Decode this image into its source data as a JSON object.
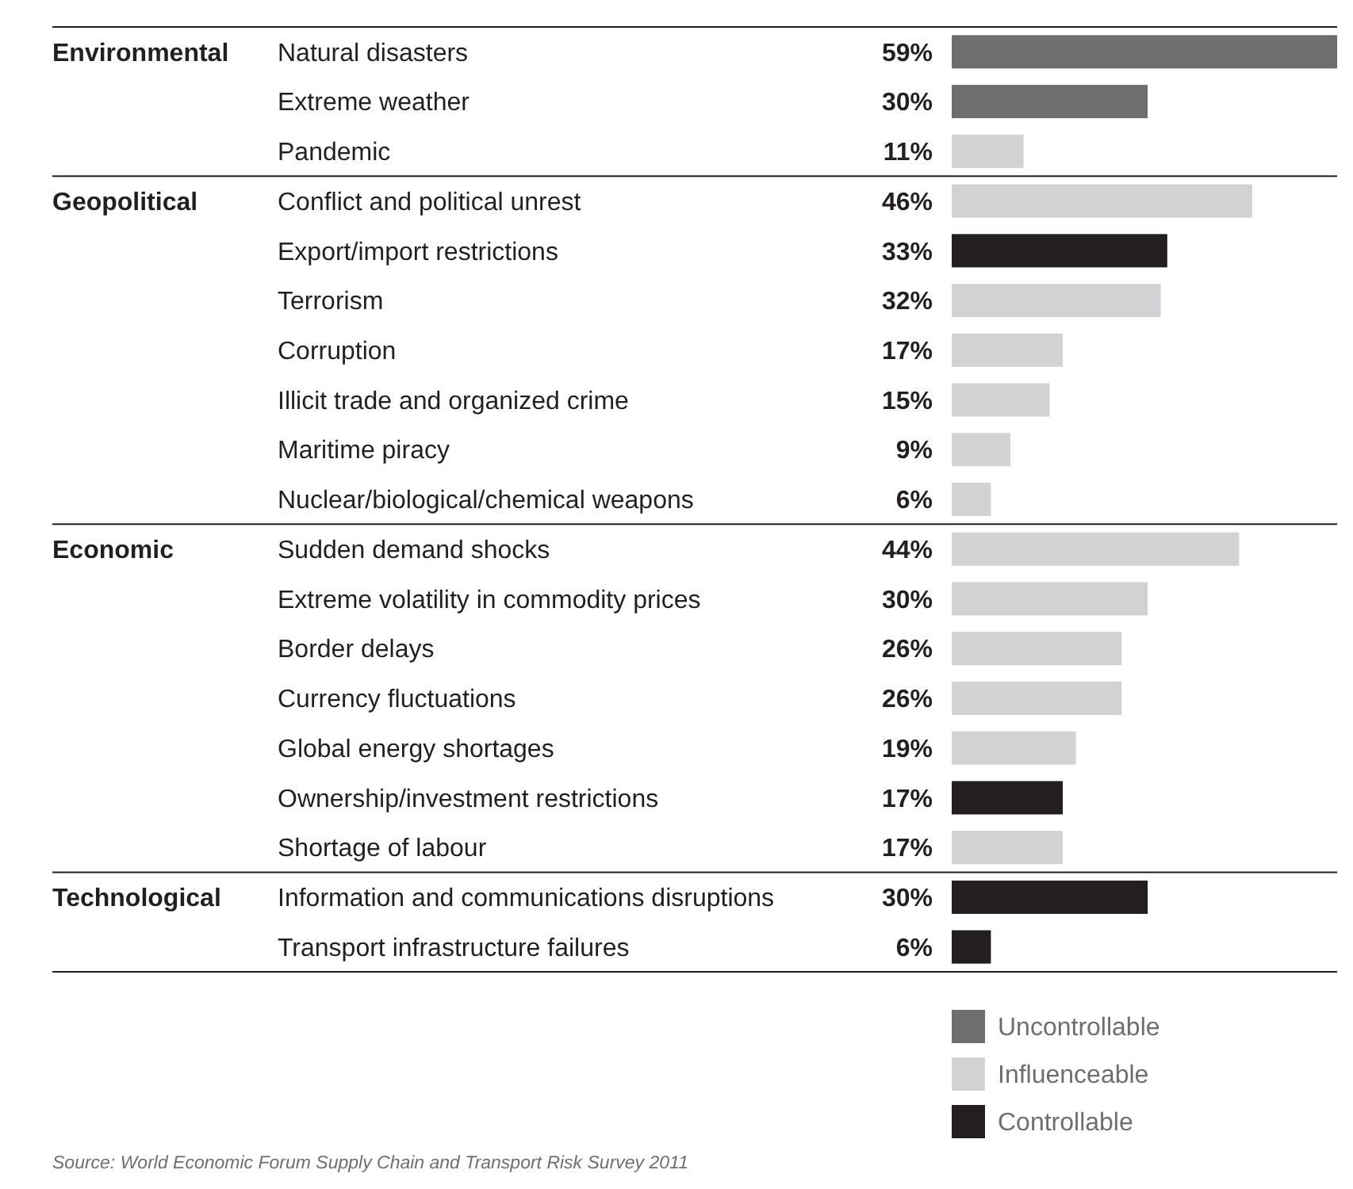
{
  "chart_data": {
    "type": "bar",
    "orientation": "horizontal",
    "legend": "bottom",
    "categories": [
      "Natural disasters",
      "Extreme weather",
      "Pandemic",
      "Conflict and political unrest",
      "Export/import restrictions",
      "Terrorism",
      "Corruption",
      "Illicit trade and organized crime",
      "Maritime piracy",
      "Nuclear/biological/chemical weapons",
      "Sudden demand shocks",
      "Extreme volatility in commodity prices",
      "Border delays",
      "Currency fluctuations",
      "Global energy shortages",
      "Ownership/investment restrictions",
      "Shortage of labour",
      "Information and communications disruptions",
      "Transport infrastructure failures"
    ],
    "series": [
      {
        "name": "Uncontrollable",
        "color": "#6d6e70",
        "values": [
          59,
          30,
          null,
          null,
          null,
          null,
          null,
          null,
          null,
          null,
          null,
          null,
          null,
          null,
          null,
          null,
          null,
          null,
          null
        ],
        "value_labels": [
          "59%",
          "30%",
          null,
          null,
          null,
          null,
          null,
          null,
          null,
          null,
          null,
          null,
          null,
          null,
          null,
          null,
          null,
          null,
          null
        ]
      },
      {
        "name": "Influenceable",
        "color": "#d1d2d4",
        "values": [
          null,
          null,
          11,
          46,
          null,
          32,
          17,
          15,
          9,
          6,
          44,
          30,
          26,
          26,
          19,
          null,
          17,
          null,
          null
        ],
        "value_labels": [
          null,
          null,
          "11%",
          "46%",
          null,
          "32%",
          "17%",
          "15%",
          "9%",
          "6%",
          "44%",
          "30%",
          "26%",
          "26%",
          "19%",
          null,
          "17%",
          null,
          null
        ]
      },
      {
        "name": "Controllable",
        "color": "#231f20",
        "values": [
          null,
          null,
          null,
          null,
          33,
          null,
          null,
          null,
          null,
          null,
          null,
          null,
          null,
          null,
          null,
          17,
          null,
          30,
          6
        ],
        "value_labels": [
          null,
          null,
          null,
          null,
          "33%",
          null,
          null,
          null,
          null,
          null,
          null,
          null,
          null,
          null,
          null,
          "17%",
          null,
          "30%",
          "6%"
        ]
      }
    ],
    "annotations": [
      "Environmental",
      "Geopolitical",
      "Economic",
      "Technological",
      "Source: World Economic Forum Supply Chain and Transport Risk Survey 2011"
    ]
  }
}
